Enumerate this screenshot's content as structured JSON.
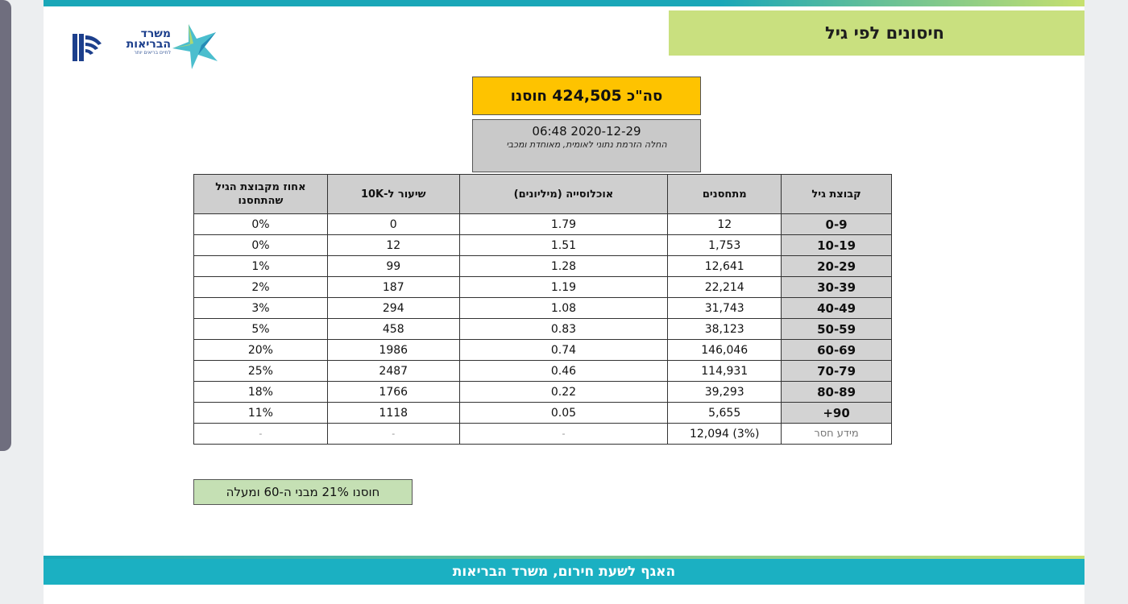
{
  "header": {
    "title": "חיסונים לפי גיל",
    "logo_text_line1": "משרד",
    "logo_text_line2": "הבריאות",
    "logo_tagline": "לחיים בריאים יותר"
  },
  "summary": {
    "total_prefix": "סה\"כ",
    "total_value": "424,505",
    "total_suffix": "חוסנו",
    "datetime": "06:48 2020-12-29",
    "note": "החלה הזרמת נתוני לאומית, מאוחדת ומכבי"
  },
  "table": {
    "headers": {
      "age_group": "קבוצת גיל",
      "vaccinated": "מתחסנים",
      "population": "אוכלוסייה (מיליונים)",
      "rate": "שיעור ל-10K",
      "percent": "אחוז מקבוצת הגיל שהתחסנו"
    },
    "rows": [
      {
        "age": "0-9",
        "vaccinated": "12",
        "population": "1.79",
        "rate": "0",
        "percent": "0%"
      },
      {
        "age": "10-19",
        "vaccinated": "1,753",
        "population": "1.51",
        "rate": "12",
        "percent": "0%"
      },
      {
        "age": "20-29",
        "vaccinated": "12,641",
        "population": "1.28",
        "rate": "99",
        "percent": "1%"
      },
      {
        "age": "30-39",
        "vaccinated": "22,214",
        "population": "1.19",
        "rate": "187",
        "percent": "2%"
      },
      {
        "age": "40-49",
        "vaccinated": "31,743",
        "population": "1.08",
        "rate": "294",
        "percent": "3%"
      },
      {
        "age": "50-59",
        "vaccinated": "38,123",
        "population": "0.83",
        "rate": "458",
        "percent": "5%"
      },
      {
        "age": "60-69",
        "vaccinated": "146,046",
        "population": "0.74",
        "rate": "1986",
        "percent": "20%"
      },
      {
        "age": "70-79",
        "vaccinated": "114,931",
        "population": "0.46",
        "rate": "2487",
        "percent": "25%"
      },
      {
        "age": "80-89",
        "vaccinated": "39,293",
        "population": "0.22",
        "rate": "1766",
        "percent": "18%"
      },
      {
        "age": "90+",
        "vaccinated": "5,655",
        "population": "0.05",
        "rate": "1118",
        "percent": "11%"
      }
    ],
    "missing_row": {
      "age": "מידע חסר",
      "vaccinated": "12,094 (3%)",
      "population": "-",
      "rate": "-",
      "percent": "-"
    }
  },
  "footnote": "חוסנו 21% מבני ה-60 ומעלה",
  "footer": {
    "text": "האגף לשעת חירום, משרד הבריאות"
  },
  "colors": {
    "title_band": "#c9e07f",
    "total_box": "#fec300",
    "footer_bar": "#1bb0c2",
    "footnote_box": "#c5e0b4"
  }
}
